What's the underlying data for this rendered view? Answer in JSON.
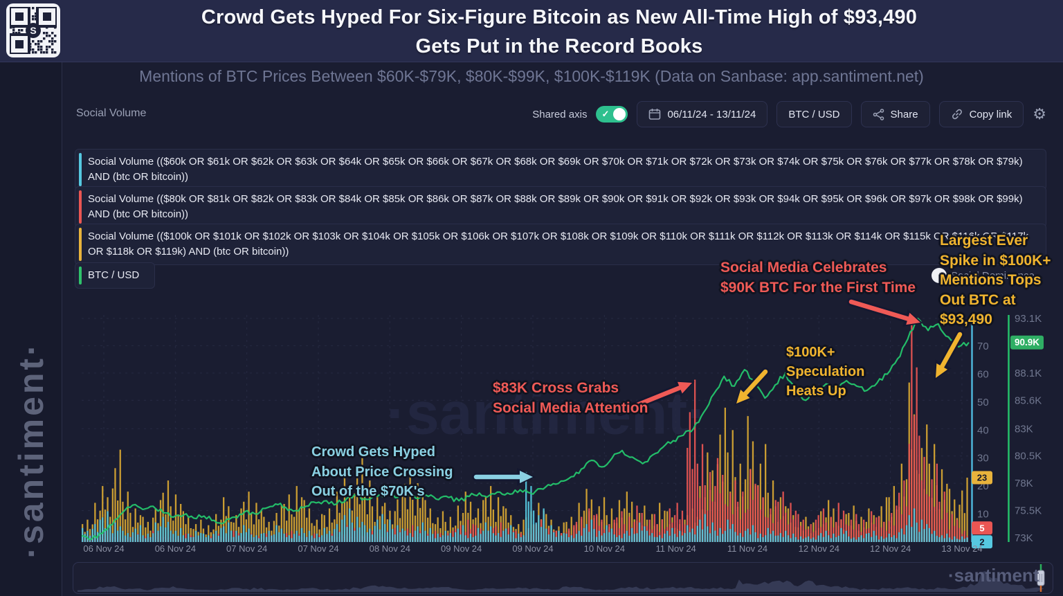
{
  "header": {
    "title_line1": "Crowd Gets Hyped For Six-Figure Bitcoin as New All-Time High of $93,490",
    "title_line2": "Gets Put in the Record Books"
  },
  "subtitle": "Mentions of BTC Prices Between $60K-$79K, $80K-$99K, $100K-$119K (Data on Sanbase: app.santiment.net)",
  "sidebar_watermark": "·santiment·",
  "center_watermark": "·santiment·",
  "minimap_watermark": "·santiment",
  "toolbar": {
    "metric_label": "Social Volume",
    "shared_axis_label": "Shared axis",
    "date_range": "06/11/24 - 13/11/24",
    "asset_button": "BTC / USD",
    "share_label": "Share",
    "copy_link_label": "Copy link"
  },
  "overlay_toggle_label": "Social Dominance",
  "legend": [
    {
      "color": "#56c8e0",
      "text": "Social Volume (($60k OR $61k OR $62k OR $63k OR $64k OR $65k OR $66k OR $67k OR $68k OR $69k OR $70k OR $71k OR $72k OR $73k OR $74k OR $75k OR $76k OR $77k OR $78k OR $79k) AND (btc OR bitcoin))"
    },
    {
      "color": "#ea5653",
      "text": "Social Volume (($80k OR $81k OR $82k OR $83k OR $84k OR $85k OR $86k OR $87k OR $88k OR $89k OR $90k OR $91k OR $92k OR $93k OR $94k OR $95k OR $96k OR $97k OR $98k OR $99k) AND (btc OR bitcoin))"
    },
    {
      "color": "#e8b33c",
      "text": "Social Volume (($100k OR $101k OR $102k OR $103k OR $104k OR $105k OR $106k OR $107k OR $108k OR $109k OR $110k OR $111k OR $112k OR $113k OR $114k OR $115k OR $116k OR $117k OR $118k OR $119k) AND (btc OR bitcoin))"
    },
    {
      "color": "#2fc26b",
      "text": "BTC / USD"
    }
  ],
  "annotations": {
    "crowd": {
      "text": "Crowd Gets Hyped\nAbout Price Crossing\nOut of the $70K's",
      "color": "#8ad0e2"
    },
    "cross83k": {
      "text": "$83K Cross Grabs\nSocial Media Attention",
      "color": "#ef5a56"
    },
    "speculation": {
      "text": "$100K+\nSpeculation\nHeats Up",
      "color": "#f0b42f"
    },
    "celebrates90k": {
      "text": "Social Media Celebrates\n$90K BTC For the First Time",
      "color": "#ef5a56"
    },
    "largest_spike": {
      "text": "Largest Ever\nSpike in $100K+\nMentions Tops\nOut BTC at\n$93,490",
      "color": "#f0b42f"
    }
  },
  "colors": {
    "toggle_green": "#2ec08e",
    "bar_cyan": "#56c8e0",
    "bar_red": "#ea5653",
    "bar_yellow": "#d9a832",
    "price_green": "#24c26b",
    "axis_cyan": "#4db5d9",
    "price_badge_bg": "#2fae64",
    "arrow_outline": "#141830"
  },
  "chart_data": {
    "type": "mixed",
    "title": "Social Volume of BTC price-range mentions vs BTC/USD",
    "x_axis_labels": [
      "06 Nov 24",
      "06 Nov 24",
      "07 Nov 24",
      "07 Nov 24",
      "08 Nov 24",
      "09 Nov 24",
      "09 Nov 24",
      "10 Nov 24",
      "11 Nov 24",
      "11 Nov 24",
      "12 Nov 24",
      "12 Nov 24",
      "13 Nov 24"
    ],
    "social_axis": {
      "label": "Social Volume",
      "ticks": [
        0,
        10,
        20,
        30,
        40,
        50,
        60,
        70
      ],
      "current_badges": [
        {
          "v": 23,
          "label": "23",
          "bg": "#e8b33c",
          "fg": "#15192b"
        },
        {
          "v": 5,
          "label": "5",
          "bg": "#ea5653",
          "fg": "#ffffff"
        },
        {
          "v": 2,
          "label": "2",
          "bg": "#56c8e0",
          "fg": "#15192b"
        }
      ]
    },
    "price_axis": {
      "label": "BTC / USD",
      "ticks": [
        {
          "v": 73,
          "label": "73K"
        },
        {
          "v": 75.5,
          "label": "75.5K"
        },
        {
          "v": 78,
          "label": "78K"
        },
        {
          "v": 80.5,
          "label": "80.5K"
        },
        {
          "v": 83,
          "label": "83K"
        },
        {
          "v": 85.6,
          "label": "85.6K"
        },
        {
          "v": 88.1,
          "label": "88.1K"
        },
        {
          "v": 90.6,
          "label": "90.6K"
        },
        {
          "v": 93.1,
          "label": "93.1K"
        }
      ],
      "current": {
        "v": 90.9,
        "label": "90.9K"
      }
    },
    "series": [
      {
        "name": "Social Volume $60k-$79k mentions",
        "type": "bar",
        "color": "#56c8e0",
        "values": [
          5,
          8,
          11,
          7,
          4,
          6,
          3,
          7,
          9,
          5,
          3,
          4,
          3,
          5,
          7,
          4,
          6,
          3,
          4,
          6,
          3,
          5,
          4,
          3,
          5,
          8,
          12,
          9,
          6,
          10,
          8,
          6,
          4,
          7,
          5,
          3,
          4,
          6,
          3,
          5,
          7,
          4,
          6,
          3,
          25,
          12,
          6,
          4,
          3,
          5,
          8,
          4,
          6,
          3,
          5,
          7,
          4,
          3,
          5,
          4,
          6,
          10,
          7,
          5,
          8,
          4,
          6,
          3,
          5,
          4,
          3,
          2,
          2,
          4,
          3,
          5,
          2,
          3,
          4,
          2,
          3,
          6,
          12,
          8,
          5,
          3,
          2,
          2
        ]
      },
      {
        "name": "Social Volume $80k-$99k mentions",
        "type": "bar",
        "color": "#ea5653",
        "values": [
          2,
          3,
          4,
          3,
          2,
          3,
          2,
          4,
          3,
          2,
          3,
          2,
          2,
          3,
          2,
          4,
          3,
          2,
          3,
          2,
          4,
          3,
          2,
          3,
          3,
          4,
          6,
          5,
          4,
          3,
          4,
          5,
          6,
          4,
          3,
          4,
          4,
          6,
          8,
          6,
          5,
          7,
          5,
          4,
          6,
          8,
          5,
          4,
          6,
          9,
          12,
          10,
          8,
          11,
          9,
          13,
          10,
          8,
          12,
          14,
          58,
          35,
          25,
          30,
          22,
          18,
          26,
          20,
          15,
          18,
          14,
          10,
          8,
          12,
          9,
          14,
          10,
          8,
          11,
          9,
          13,
          22,
          78,
          38,
          28,
          18,
          10,
          5
        ]
      },
      {
        "name": "Social Volume $100k-$119k mentions",
        "type": "bar",
        "color": "#d9a832",
        "values": [
          8,
          14,
          20,
          33,
          18,
          12,
          9,
          15,
          22,
          17,
          11,
          8,
          6,
          10,
          16,
          12,
          18,
          14,
          9,
          13,
          17,
          20,
          15,
          10,
          12,
          18,
          25,
          30,
          22,
          16,
          14,
          19,
          26,
          21,
          15,
          11,
          9,
          13,
          18,
          15,
          20,
          16,
          12,
          8,
          11,
          14,
          10,
          7,
          9,
          14,
          19,
          16,
          12,
          15,
          18,
          13,
          10,
          14,
          11,
          8,
          12,
          20,
          32,
          48,
          40,
          28,
          45,
          35,
          22,
          16,
          12,
          9,
          7,
          11,
          15,
          10,
          13,
          9,
          12,
          16,
          20,
          28,
          57,
          42,
          35,
          26,
          19,
          23
        ]
      },
      {
        "name": "BTC / USD",
        "type": "line",
        "color": "#24c26b",
        "unit": "K USD",
        "values": [
          73.2,
          72.9,
          73.4,
          74.2,
          75.3,
          76.0,
          75.6,
          75.9,
          75.3,
          74.9,
          75.1,
          74.8,
          75.0,
          74.6,
          74.4,
          74.9,
          75.4,
          75.2,
          75.7,
          76.1,
          75.8,
          75.5,
          75.9,
          76.2,
          76.4,
          76.1,
          76.6,
          76.9,
          76.5,
          76.8,
          77.0,
          76.7,
          76.9,
          76.6,
          76.8,
          76.5,
          76.7,
          76.4,
          76.8,
          77.1,
          76.9,
          77.2,
          77.0,
          77.4,
          77.1,
          77.5,
          77.8,
          78.2,
          78.6,
          79.3,
          80.1,
          79.5,
          80.3,
          81.0,
          80.4,
          79.8,
          80.6,
          81.3,
          81.9,
          82.4,
          83.0,
          84.5,
          86.2,
          87.8,
          86.9,
          88.4,
          87.2,
          85.8,
          87.0,
          88.1,
          86.4,
          85.6,
          86.3,
          87.1,
          86.6,
          87.4,
          86.9,
          86.5,
          87.2,
          88.0,
          89.4,
          91.2,
          93.1,
          92.0,
          92.6,
          91.4,
          90.5,
          90.9
        ]
      }
    ]
  }
}
